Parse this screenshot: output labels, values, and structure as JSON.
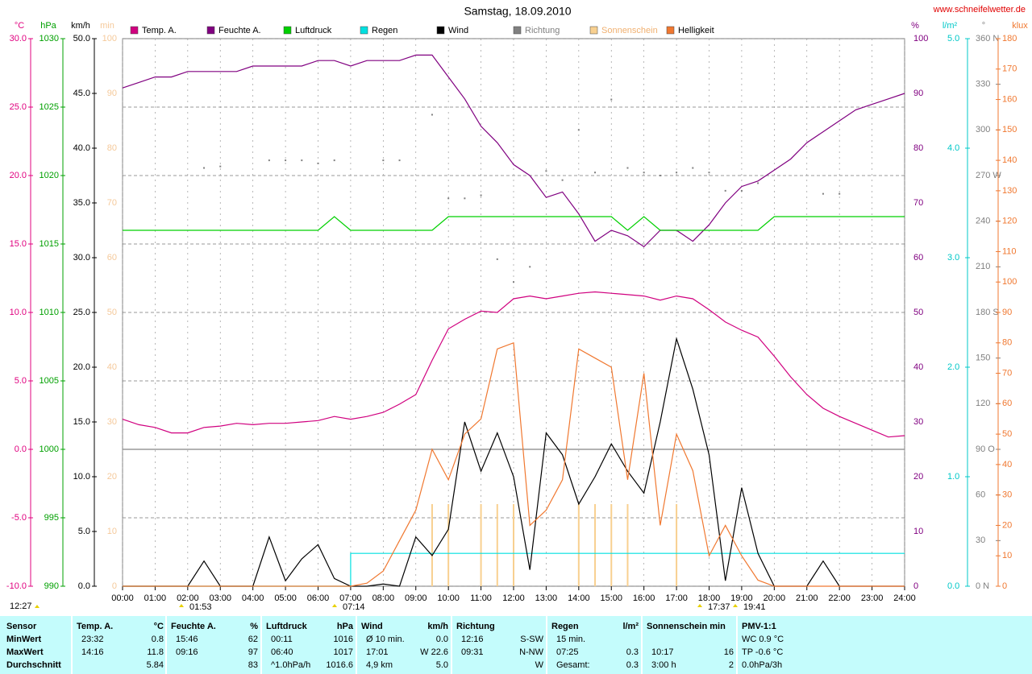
{
  "chart_data": {
    "type": "line",
    "title": "Samstag, 18.09.2010",
    "source": "www.schneifelwetter.de",
    "x": [
      0,
      0.5,
      1,
      1.5,
      2,
      2.5,
      3,
      3.5,
      4,
      4.5,
      5,
      5.5,
      6,
      6.5,
      7,
      7.5,
      8,
      8.5,
      9,
      9.5,
      10,
      10.5,
      11,
      11.5,
      12,
      12.5,
      13,
      13.5,
      14,
      14.5,
      15,
      15.5,
      16,
      16.5,
      17,
      17.5,
      18,
      18.5,
      19,
      19.5,
      20,
      20.5,
      21,
      21.5,
      22,
      22.5,
      23,
      23.5,
      24
    ],
    "xlim": [
      0,
      24
    ],
    "xticks": [
      {
        "value": 0,
        "label": "00:00"
      },
      {
        "value": 1,
        "label": "01:00"
      },
      {
        "value": 2,
        "label": "02:00"
      },
      {
        "value": 3,
        "label": "03:00"
      },
      {
        "value": 4,
        "label": "04:00"
      },
      {
        "value": 5,
        "label": "05:00"
      },
      {
        "value": 6,
        "label": "06:00"
      },
      {
        "value": 7,
        "label": "07:00"
      },
      {
        "value": 8,
        "label": "08:00"
      },
      {
        "value": 9,
        "label": "09:00"
      },
      {
        "value": 10,
        "label": "10:00"
      },
      {
        "value": 11,
        "label": "11:00"
      },
      {
        "value": 12,
        "label": "12:00"
      },
      {
        "value": 13,
        "label": "13:00"
      },
      {
        "value": 14,
        "label": "14:00"
      },
      {
        "value": 15,
        "label": "15:00"
      },
      {
        "value": 16,
        "label": "16:00"
      },
      {
        "value": 17,
        "label": "17:00"
      },
      {
        "value": 18,
        "label": "18:00"
      },
      {
        "value": 19,
        "label": "19:00"
      },
      {
        "value": 20,
        "label": "20:00"
      },
      {
        "value": 21,
        "label": "21:00"
      },
      {
        "value": 22,
        "label": "22:00"
      },
      {
        "value": 23,
        "label": "23:00"
      },
      {
        "value": 24,
        "label": "24:00"
      }
    ],
    "grid": true,
    "axes": [
      {
        "unit": "°C",
        "color": "#e0007f",
        "lim": [
          -10,
          30
        ],
        "ticks": [
          {
            "value": -10,
            "label": "-10.0"
          },
          {
            "value": -5,
            "label": "-5.0"
          },
          {
            "value": 0,
            "label": "0.0"
          },
          {
            "value": 5,
            "label": "5.0"
          },
          {
            "value": 10,
            "label": "10.0"
          },
          {
            "value": 15,
            "label": "15.0"
          },
          {
            "value": 20,
            "label": "20.0"
          },
          {
            "value": 25,
            "label": "25.0"
          },
          {
            "value": 30,
            "label": "30.0"
          }
        ]
      },
      {
        "unit": "hPa",
        "color": "#00a000",
        "lim": [
          990,
          1030
        ],
        "ticks": [
          990,
          995,
          1000,
          1005,
          1010,
          1015,
          1020,
          1025,
          1030
        ]
      },
      {
        "unit": "km/h",
        "color": "#000000",
        "lim": [
          0,
          50
        ],
        "ticks": [
          {
            "value": 0,
            "label": "0.0"
          },
          {
            "value": 5,
            "label": "5.0"
          },
          {
            "value": 10,
            "label": "10.0"
          },
          {
            "value": 15,
            "label": "15.0"
          },
          {
            "value": 20,
            "label": "20.0"
          },
          {
            "value": 25,
            "label": "25.0"
          },
          {
            "value": 30,
            "label": "30.0"
          },
          {
            "value": 35,
            "label": "35.0"
          },
          {
            "value": 40,
            "label": "40.0"
          },
          {
            "value": 45,
            "label": "45.0"
          },
          {
            "value": 50,
            "label": "50.0"
          }
        ]
      },
      {
        "unit": "min",
        "color": "#f5c99a",
        "lim": [
          0,
          100
        ],
        "ticks": [
          0,
          10,
          20,
          30,
          40,
          50,
          60,
          70,
          80,
          90,
          100
        ]
      },
      {
        "unit": "%",
        "color": "#800080",
        "lim": [
          0,
          100
        ],
        "ticks": [
          0,
          10,
          20,
          30,
          40,
          50,
          60,
          70,
          80,
          90,
          100
        ]
      },
      {
        "unit": "l/m²",
        "color": "#00c8c8",
        "lim": [
          0,
          5
        ],
        "ticks": [
          {
            "value": 0,
            "label": "0.0"
          },
          {
            "value": 1,
            "label": "1.0"
          },
          {
            "value": 2,
            "label": "2.0"
          },
          {
            "value": 3,
            "label": "3.0"
          },
          {
            "value": 4,
            "label": "4.0"
          },
          {
            "value": 5,
            "label": "5.0"
          }
        ]
      },
      {
        "unit": "°",
        "color": "#808080",
        "lim": [
          0,
          360
        ],
        "ticks": [
          {
            "value": 0,
            "label": "0 N"
          },
          30,
          60,
          {
            "value": 90,
            "label": "90 O"
          },
          120,
          150,
          {
            "value": 180,
            "label": "180 S"
          },
          210,
          240,
          {
            "value": 270,
            "label": "270 W"
          },
          300,
          330,
          {
            "value": 360,
            "label": "360 N"
          }
        ]
      },
      {
        "unit": "klux",
        "color": "#f07830",
        "lim": [
          0,
          180
        ],
        "ticks": [
          0,
          10,
          20,
          30,
          40,
          50,
          60,
          70,
          80,
          90,
          100,
          110,
          120,
          130,
          140,
          150,
          160,
          170,
          180
        ]
      }
    ],
    "series": [
      {
        "name": "Temp. A.",
        "color": "#d0007f",
        "axis": 0,
        "style": "line",
        "values": [
          2.2,
          1.8,
          1.6,
          1.2,
          1.2,
          1.6,
          1.7,
          1.9,
          1.8,
          1.9,
          1.9,
          2.0,
          2.1,
          2.4,
          2.2,
          2.4,
          2.7,
          3.3,
          4.0,
          6.5,
          8.8,
          9.5,
          10.1,
          10.0,
          11.0,
          11.2,
          11.0,
          11.2,
          11.4,
          11.5,
          11.4,
          11.3,
          11.2,
          10.9,
          11.2,
          11.0,
          10.2,
          9.3,
          8.7,
          8.2,
          6.8,
          5.3,
          4.0,
          3.0,
          2.4,
          1.9,
          1.4,
          0.9,
          1.0
        ]
      },
      {
        "name": "Feuchte A.",
        "color": "#800080",
        "axis": 4,
        "style": "line",
        "values": [
          91,
          92,
          93,
          93,
          94,
          94,
          94,
          94,
          95,
          95,
          95,
          95,
          96,
          96,
          95,
          96,
          96,
          96,
          97,
          97,
          93,
          89,
          84,
          81,
          77,
          75,
          71,
          72,
          68,
          63,
          65,
          64,
          62,
          65,
          65,
          63,
          66,
          70,
          73,
          74,
          76,
          78,
          81,
          83,
          85,
          87,
          88,
          89,
          90
        ]
      },
      {
        "name": "Luftdruck",
        "color": "#00d000",
        "axis": 1,
        "style": "line",
        "values": [
          1016,
          1016,
          1016,
          1016,
          1016,
          1016,
          1016,
          1016,
          1016,
          1016,
          1016,
          1016,
          1016,
          1017,
          1016,
          1016,
          1016,
          1016,
          1016,
          1016,
          1017,
          1017,
          1017,
          1017,
          1017,
          1017,
          1017,
          1017,
          1017,
          1017,
          1017,
          1016,
          1017,
          1016,
          1016,
          1016,
          1016,
          1016,
          1016,
          1016,
          1017,
          1017,
          1017,
          1017,
          1017,
          1017,
          1017,
          1017,
          1017
        ]
      },
      {
        "name": "Regen",
        "color": "#00e0e0",
        "axis": 5,
        "style": "step",
        "values": [
          0,
          0,
          0,
          0,
          0,
          0,
          0,
          0,
          0,
          0,
          0,
          0,
          0,
          0,
          0,
          0.3,
          0.3,
          0.3,
          0.3,
          0.3,
          0.3,
          0.3,
          0.3,
          0.3,
          0.3,
          0.3,
          0.3,
          0.3,
          0.3,
          0.3,
          0.3,
          0.3,
          0.3,
          0.3,
          0.3,
          0.3,
          0.3,
          0.3,
          0.3,
          0.3,
          0.3,
          0.3,
          0.3,
          0.3,
          0.3,
          0.3,
          0.3,
          0.3,
          0.3
        ]
      },
      {
        "name": "Wind",
        "color": "#000000",
        "axis": 2,
        "style": "line",
        "values": [
          0,
          0,
          0,
          0,
          0,
          2.3,
          0,
          0,
          0,
          4.5,
          0.5,
          2.5,
          3.8,
          0.7,
          0,
          0,
          0.2,
          0,
          4.5,
          2.8,
          5.2,
          15,
          10.5,
          14,
          10,
          1.5,
          14,
          12,
          7.5,
          10,
          13,
          10.5,
          8.5,
          15,
          22.6,
          18,
          12,
          0.5,
          9,
          3,
          0,
          0,
          0,
          2.3,
          0,
          0,
          0,
          0,
          0
        ]
      },
      {
        "name": "Richtung",
        "color": "#808080",
        "axis": 6,
        "style": "dots",
        "values": [
          null,
          null,
          null,
          null,
          null,
          275,
          276,
          null,
          null,
          280,
          280,
          280,
          278,
          280,
          null,
          null,
          280,
          280,
          null,
          310,
          255,
          255,
          257,
          215,
          200,
          210,
          273,
          267,
          300,
          272,
          320,
          275,
          272,
          270,
          272,
          275,
          272,
          260,
          260,
          265,
          null,
          null,
          null,
          258,
          258,
          null,
          null,
          null,
          null
        ]
      },
      {
        "name": "Sonnenschein",
        "color": "#f8d090",
        "axis": 3,
        "style": "bars",
        "values": [
          0,
          0,
          0,
          0,
          0,
          0,
          0,
          0,
          0,
          0,
          0,
          0,
          0,
          0,
          0,
          0,
          0,
          0,
          0,
          15,
          15,
          0,
          15,
          15,
          15,
          0,
          0,
          0,
          15,
          15,
          15,
          15,
          0,
          0,
          15,
          0,
          0,
          0,
          0,
          0,
          0,
          0,
          0,
          0,
          0,
          0,
          0,
          0,
          0
        ]
      },
      {
        "name": "Helligkeit",
        "color": "#f07830",
        "axis": 7,
        "style": "line",
        "values": [
          0,
          0,
          0,
          0,
          0,
          0,
          0,
          0,
          0,
          0,
          0,
          0,
          0,
          0,
          0,
          1,
          5,
          15,
          25,
          45,
          35,
          50,
          55,
          78,
          80,
          20,
          25,
          35,
          78,
          75,
          72,
          35,
          70,
          20,
          50,
          38,
          10,
          20,
          10,
          2,
          0,
          0,
          0,
          0,
          0,
          0,
          0,
          0,
          0
        ]
      }
    ],
    "annotations": [
      "12:27",
      "01:53",
      "07:14",
      "17:37",
      "19:41"
    ]
  },
  "table": {
    "header": [
      [
        "Sensor",
        ""
      ],
      [
        "Temp. A.",
        "°C"
      ],
      [
        "Feuchte A.",
        "%"
      ],
      [
        "Luftdruck",
        "hPa"
      ],
      [
        "Wind",
        "km/h"
      ],
      [
        "Richtung",
        ""
      ],
      [
        "Regen",
        "l/m²"
      ],
      [
        "Sonnenschein min",
        ""
      ],
      [
        "PMV-1:1",
        ""
      ]
    ],
    "rows": [
      [
        [
          "MinWert",
          ""
        ],
        [
          "23:32",
          "0.8"
        ],
        [
          "15:46",
          "62"
        ],
        [
          "00:11",
          "1016"
        ],
        [
          "Ø 10 min.",
          "0.0"
        ],
        [
          "12:16",
          "S-SW"
        ],
        [
          "15 min.",
          ""
        ],
        [
          "",
          ""
        ],
        [
          "WC 0.9 °C",
          ""
        ]
      ],
      [
        [
          "MaxWert",
          ""
        ],
        [
          "14:16",
          "11.8"
        ],
        [
          "09:16",
          "97"
        ],
        [
          "06:40",
          "1017"
        ],
        [
          "17:01",
          "W 22.6"
        ],
        [
          "09:31",
          "N-NW"
        ],
        [
          "07:25",
          "0.3"
        ],
        [
          "10:17",
          "16"
        ],
        [
          "TP -0.6 °C",
          ""
        ]
      ],
      [
        [
          "Durchschnitt",
          ""
        ],
        [
          "",
          "5.84"
        ],
        [
          "",
          "83"
        ],
        [
          "^1.0hPa/h",
          "1016.6"
        ],
        [
          "4,9 km",
          "5.0"
        ],
        [
          "",
          "W"
        ],
        [
          "Gesamt:",
          "0.3"
        ],
        [
          "3:00 h",
          "2"
        ],
        [
          "0.0hPa/3h",
          ""
        ]
      ]
    ]
  }
}
